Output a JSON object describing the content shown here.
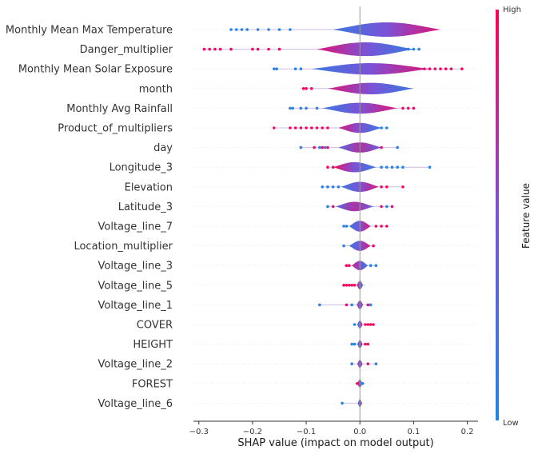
{
  "chart_data": {
    "type": "beeswarm-violin",
    "xlabel": "SHAP value (impact on model output)",
    "xlim": [
      -0.31,
      0.22
    ],
    "xticks": [
      -0.3,
      -0.2,
      -0.1,
      0.0,
      0.1,
      0.2
    ],
    "xtick_labels": [
      "−0.3",
      "−0.2",
      "−0.1",
      "0.0",
      "0.1",
      "0.2"
    ],
    "colorbar": {
      "label": "Feature value",
      "high_label": "High",
      "low_label": "Low",
      "low_color": "#1e88e5",
      "mid_color": "#7c52d6",
      "high_color": "#ff0051"
    },
    "grid": false,
    "features": [
      {
        "name": "Monthly Mean Max Temperature",
        "range": [
          -0.24,
          0.14
        ],
        "spread": 0.1,
        "center": 0.05,
        "density_height": 1.0,
        "low_side": "low",
        "points_left": [
          -0.24,
          -0.23,
          -0.22,
          -0.21,
          -0.19,
          -0.17,
          -0.15,
          -0.13
        ],
        "points_right": []
      },
      {
        "name": "Danger_multiplier",
        "range": [
          -0.29,
          0.11
        ],
        "spread": 0.09,
        "center": 0.01,
        "density_height": 0.95,
        "low_side": "high",
        "points_left": [
          -0.29,
          -0.28,
          -0.27,
          -0.26,
          -0.24,
          -0.2,
          -0.19,
          -0.17,
          -0.15
        ],
        "points_right": [
          0.09,
          0.1,
          0.11
        ]
      },
      {
        "name": "Monthly Mean Solar Exposure",
        "range": [
          -0.16,
          0.19
        ],
        "spread": 0.11,
        "center": 0.02,
        "density_height": 0.8,
        "low_side": "low",
        "points_left": [
          -0.16,
          -0.155,
          -0.12,
          -0.11
        ],
        "points_right": [
          0.12,
          0.13,
          0.14,
          0.15,
          0.16,
          0.17,
          0.19
        ]
      },
      {
        "name": "month",
        "range": [
          -0.11,
          0.1
        ],
        "spread": 0.08,
        "center": 0.02,
        "density_height": 0.8,
        "low_side": "high",
        "points_left": [
          -0.105,
          -0.1,
          -0.09
        ],
        "points_right": []
      },
      {
        "name": "Monthly Avg Rainfall",
        "range": [
          -0.13,
          0.1
        ],
        "spread": 0.07,
        "center": 0.0,
        "density_height": 0.75,
        "low_side": "low",
        "points_left": [
          -0.13,
          -0.125,
          -0.11,
          -0.1,
          -0.08
        ],
        "points_right": [
          0.08,
          0.09,
          0.1
        ]
      },
      {
        "name": "Product_of_multipliers",
        "range": [
          -0.16,
          0.05
        ],
        "spread": 0.04,
        "center": 0.0,
        "density_height": 0.7,
        "low_side": "high",
        "points_left": [
          -0.16,
          -0.13,
          -0.12,
          -0.11,
          -0.1,
          -0.09,
          -0.08,
          -0.07,
          -0.06
        ],
        "points_right": [
          0.04,
          0.05
        ]
      },
      {
        "name": "day",
        "range": [
          -0.11,
          0.07
        ],
        "spread": 0.04,
        "center": 0.0,
        "density_height": 0.7,
        "low_side": "mixed",
        "points_left": [
          -0.11,
          -0.085,
          -0.075,
          -0.07,
          -0.065,
          -0.06
        ],
        "points_right": [
          0.04,
          0.07
        ]
      },
      {
        "name": "Longitude_3",
        "range": [
          -0.06,
          0.13
        ],
        "spread": 0.04,
        "center": -0.01,
        "density_height": 0.7,
        "low_side": "high",
        "points_left": [
          -0.06,
          -0.05,
          -0.04
        ],
        "points_right": [
          0.04,
          0.05,
          0.06,
          0.07,
          0.08,
          0.13
        ]
      },
      {
        "name": "Elevation",
        "range": [
          -0.07,
          0.08
        ],
        "spread": 0.035,
        "center": 0.0,
        "density_height": 0.7,
        "low_side": "low",
        "points_left": [
          -0.07,
          -0.06,
          -0.05,
          -0.04
        ],
        "points_right": [
          0.04,
          0.05,
          0.08
        ]
      },
      {
        "name": "Latitude_3",
        "range": [
          -0.06,
          0.06
        ],
        "spread": 0.035,
        "center": -0.01,
        "density_height": 0.65,
        "low_side": "mixed",
        "points_left": [
          -0.06,
          -0.05
        ],
        "points_right": [
          0.04,
          0.05,
          0.06
        ]
      },
      {
        "name": "Voltage_line_7",
        "range": [
          -0.03,
          0.05
        ],
        "spread": 0.02,
        "center": 0.0,
        "density_height": 0.75,
        "low_side": "low",
        "points_left": [
          -0.03,
          -0.025
        ],
        "points_right": [
          0.03,
          0.04,
          0.05
        ]
      },
      {
        "name": "Location_multiplier",
        "range": [
          -0.03,
          0.03
        ],
        "spread": 0.02,
        "center": 0.0,
        "density_height": 0.7,
        "low_side": "low",
        "points_left": [
          -0.03
        ],
        "points_right": [
          0.025
        ]
      },
      {
        "name": "Voltage_line_3",
        "range": [
          -0.03,
          0.03
        ],
        "spread": 0.015,
        "center": 0.0,
        "density_height": 0.65,
        "low_side": "high",
        "points_left": [
          -0.025,
          -0.02
        ],
        "points_right": [
          0.02,
          0.03
        ]
      },
      {
        "name": "Voltage_line_5",
        "range": [
          -0.03,
          0.01
        ],
        "spread": 0.006,
        "center": 0.0,
        "density_height": 0.6,
        "low_side": "high",
        "points_left": [
          -0.03,
          -0.025,
          -0.02,
          -0.015,
          -0.01
        ],
        "points_right": []
      },
      {
        "name": "Voltage_line_1",
        "range": [
          -0.075,
          0.02
        ],
        "spread": 0.006,
        "center": 0.0,
        "density_height": 0.6,
        "low_side": "mixed",
        "points_left": [
          -0.075,
          -0.025,
          -0.015
        ],
        "points_right": [
          0.015,
          0.02
        ]
      },
      {
        "name": "COVER",
        "range": [
          -0.01,
          0.025
        ],
        "spread": 0.005,
        "center": 0.0,
        "density_height": 0.55,
        "low_side": "low",
        "points_left": [
          -0.01
        ],
        "points_right": [
          0.01,
          0.015,
          0.02,
          0.025
        ]
      },
      {
        "name": "HEIGHT",
        "range": [
          -0.015,
          0.015
        ],
        "spread": 0.005,
        "center": 0.0,
        "density_height": 0.55,
        "low_side": "low",
        "points_left": [
          -0.015,
          -0.01
        ],
        "points_right": [
          0.01,
          0.015
        ]
      },
      {
        "name": "Voltage_line_2",
        "range": [
          -0.015,
          0.03
        ],
        "spread": 0.005,
        "center": 0.0,
        "density_height": 0.55,
        "low_side": "mixed",
        "points_left": [
          -0.015
        ],
        "points_right": [
          0.015,
          0.03
        ]
      },
      {
        "name": "FOREST",
        "range": [
          -0.01,
          0.01
        ],
        "spread": 0.005,
        "center": 0.0,
        "density_height": 0.55,
        "low_side": "high",
        "points_left": [
          -0.005
        ],
        "points_right": [
          0.005
        ]
      },
      {
        "name": "Voltage_line_6",
        "range": [
          -0.035,
          0.005
        ],
        "spread": 0.004,
        "center": 0.0,
        "density_height": 0.55,
        "low_side": "low",
        "points_left": [
          -0.033
        ],
        "points_right": []
      }
    ]
  }
}
